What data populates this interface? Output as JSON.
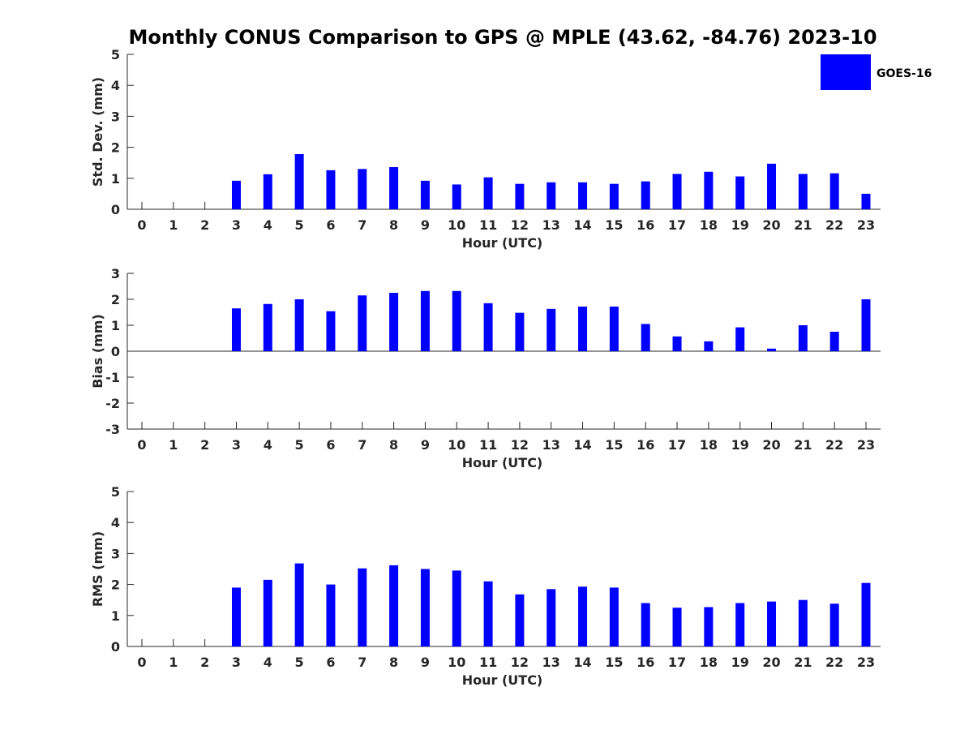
{
  "title": "Monthly CONUS Comparison to GPS @ MPLE (43.62, -84.76) 2023-10",
  "legend": {
    "label": "GOES-16",
    "color": "#0000ff"
  },
  "chart_data": [
    {
      "type": "bar",
      "name": "std-dev",
      "xlabel": "Hour (UTC)",
      "ylabel": "Std. Dev. (mm)",
      "ylim": [
        0,
        5
      ],
      "yticks": [
        0,
        1,
        2,
        3,
        4,
        5
      ],
      "categories": [
        "0",
        "1",
        "2",
        "3",
        "4",
        "5",
        "6",
        "7",
        "8",
        "9",
        "10",
        "11",
        "12",
        "13",
        "14",
        "15",
        "16",
        "17",
        "18",
        "19",
        "20",
        "21",
        "22",
        "23"
      ],
      "series": [
        {
          "name": "GOES-16",
          "color": "#0000ff",
          "values": [
            null,
            null,
            null,
            0.92,
            1.13,
            1.78,
            1.26,
            1.3,
            1.36,
            0.92,
            0.8,
            1.03,
            0.82,
            0.87,
            0.87,
            0.82,
            0.9,
            1.14,
            1.21,
            1.06,
            1.47,
            1.14,
            1.16,
            0.5
          ]
        }
      ]
    },
    {
      "type": "bar",
      "name": "bias",
      "xlabel": "Hour (UTC)",
      "ylabel": "Bias (mm)",
      "ylim": [
        -3,
        3
      ],
      "yticks": [
        -3,
        -2,
        -1,
        0,
        1,
        2,
        3
      ],
      "categories": [
        "0",
        "1",
        "2",
        "3",
        "4",
        "5",
        "6",
        "7",
        "8",
        "9",
        "10",
        "11",
        "12",
        "13",
        "14",
        "15",
        "16",
        "17",
        "18",
        "19",
        "20",
        "21",
        "22",
        "23"
      ],
      "series": [
        {
          "name": "GOES-16",
          "color": "#0000ff",
          "values": [
            null,
            null,
            null,
            1.65,
            1.82,
            2.0,
            1.54,
            2.15,
            2.25,
            2.32,
            2.32,
            1.85,
            1.48,
            1.63,
            1.72,
            1.72,
            1.05,
            0.57,
            0.38,
            0.92,
            0.1,
            1.0,
            0.75,
            2.0
          ]
        }
      ]
    },
    {
      "type": "bar",
      "name": "rms",
      "xlabel": "Hour (UTC)",
      "ylabel": "RMS (mm)",
      "ylim": [
        0,
        5
      ],
      "yticks": [
        0,
        1,
        2,
        3,
        4,
        5
      ],
      "categories": [
        "0",
        "1",
        "2",
        "3",
        "4",
        "5",
        "6",
        "7",
        "8",
        "9",
        "10",
        "11",
        "12",
        "13",
        "14",
        "15",
        "16",
        "17",
        "18",
        "19",
        "20",
        "21",
        "22",
        "23"
      ],
      "series": [
        {
          "name": "GOES-16",
          "color": "#0000ff",
          "values": [
            null,
            null,
            null,
            1.9,
            2.15,
            2.68,
            2.0,
            2.52,
            2.62,
            2.5,
            2.45,
            2.1,
            1.68,
            1.85,
            1.93,
            1.9,
            1.4,
            1.25,
            1.27,
            1.4,
            1.45,
            1.5,
            1.38,
            2.05
          ]
        }
      ]
    }
  ]
}
